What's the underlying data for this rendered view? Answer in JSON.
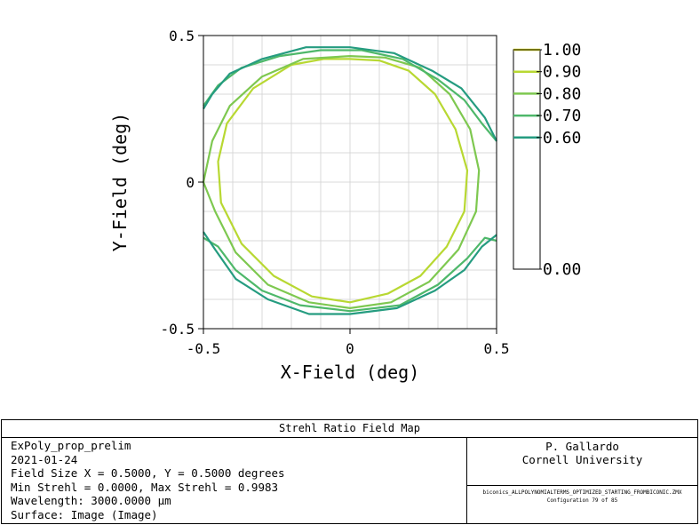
{
  "chart_data": {
    "type": "contour",
    "xlabel": "X-Field (deg)",
    "ylabel": "Y-Field (deg)",
    "xlim": [
      -0.5,
      0.5
    ],
    "ylim": [
      -0.5,
      0.5
    ],
    "x_ticks": [
      "-0.5",
      "0",
      "0.5"
    ],
    "y_ticks": [
      "0.5",
      "0",
      "-0.5"
    ],
    "grid": true,
    "legend": {
      "placement": "right",
      "entries": [
        {
          "label": "1.00",
          "color": "#e8e82a"
        },
        {
          "label": "0.90",
          "color": "#b8d832"
        },
        {
          "label": "0.80",
          "color": "#7ec850"
        },
        {
          "label": "0.70",
          "color": "#4eb86a"
        },
        {
          "label": "0.60",
          "color": "#259c80"
        },
        {
          "label": "0.00",
          "color": ""
        }
      ]
    },
    "contours": [
      {
        "level": 0.9,
        "color": "#b8d832",
        "points": [
          [
            0.0,
            0.42
          ],
          [
            0.1,
            0.415
          ],
          [
            0.2,
            0.38
          ],
          [
            0.29,
            0.3
          ],
          [
            0.36,
            0.18
          ],
          [
            0.4,
            0.04
          ],
          [
            0.39,
            -0.1
          ],
          [
            0.33,
            -0.22
          ],
          [
            0.24,
            -0.32
          ],
          [
            0.13,
            -0.38
          ],
          [
            0.0,
            -0.41
          ],
          [
            -0.13,
            -0.39
          ],
          [
            -0.26,
            -0.32
          ],
          [
            -0.37,
            -0.21
          ],
          [
            -0.44,
            -0.07
          ],
          [
            -0.45,
            0.07
          ],
          [
            -0.42,
            0.2
          ],
          [
            -0.33,
            0.32
          ],
          [
            -0.2,
            0.4
          ],
          [
            -0.09,
            0.42
          ],
          [
            0.0,
            0.42
          ]
        ]
      },
      {
        "level": 0.8,
        "color": "#7ec850",
        "points": [
          [
            0.0,
            0.43
          ],
          [
            0.12,
            0.425
          ],
          [
            0.24,
            0.39
          ],
          [
            0.34,
            0.3
          ],
          [
            0.41,
            0.18
          ],
          [
            0.44,
            0.04
          ],
          [
            0.43,
            -0.1
          ],
          [
            0.37,
            -0.23
          ],
          [
            0.27,
            -0.34
          ],
          [
            0.14,
            -0.41
          ],
          [
            0.0,
            -0.43
          ],
          [
            -0.14,
            -0.41
          ],
          [
            -0.28,
            -0.35
          ],
          [
            -0.39,
            -0.24
          ],
          [
            -0.46,
            -0.1
          ],
          [
            -0.5,
            0.0
          ],
          [
            -0.47,
            0.14
          ],
          [
            -0.41,
            0.26
          ],
          [
            -0.3,
            0.36
          ],
          [
            -0.16,
            0.42
          ],
          [
            0.0,
            0.43
          ]
        ]
      },
      {
        "level": 0.7,
        "color": "#4eb86a",
        "points": [
          [
            -0.5,
            0.26
          ],
          [
            -0.45,
            0.33
          ],
          [
            -0.37,
            0.39
          ],
          [
            -0.24,
            0.43
          ],
          [
            -0.1,
            0.45
          ],
          [
            0.04,
            0.45
          ],
          [
            0.18,
            0.42
          ],
          [
            0.3,
            0.35
          ],
          [
            0.39,
            0.28
          ],
          [
            0.45,
            0.2
          ],
          [
            0.5,
            0.14
          ]
        ]
      },
      {
        "level": 0.7,
        "color": "#4eb86a",
        "points": [
          [
            -0.5,
            -0.19
          ],
          [
            -0.45,
            -0.22
          ],
          [
            -0.39,
            -0.3
          ],
          [
            -0.3,
            -0.37
          ],
          [
            -0.17,
            -0.42
          ],
          [
            0.0,
            -0.44
          ],
          [
            0.17,
            -0.42
          ],
          [
            0.3,
            -0.35
          ],
          [
            0.4,
            -0.26
          ],
          [
            0.46,
            -0.19
          ],
          [
            0.5,
            -0.2
          ]
        ]
      },
      {
        "level": 0.6,
        "color": "#259c80",
        "points": [
          [
            -0.5,
            0.25
          ],
          [
            -0.47,
            0.3
          ],
          [
            -0.41,
            0.37
          ],
          [
            -0.3,
            0.42
          ],
          [
            -0.15,
            0.46
          ],
          [
            0.0,
            0.46
          ],
          [
            0.15,
            0.44
          ],
          [
            0.28,
            0.38
          ],
          [
            0.38,
            0.32
          ],
          [
            0.46,
            0.22
          ],
          [
            0.5,
            0.14
          ]
        ]
      },
      {
        "level": 0.6,
        "color": "#259c80",
        "points": [
          [
            -0.5,
            -0.17
          ],
          [
            -0.46,
            -0.23
          ],
          [
            -0.39,
            -0.33
          ],
          [
            -0.28,
            -0.4
          ],
          [
            -0.14,
            -0.45
          ],
          [
            0.0,
            -0.45
          ],
          [
            0.16,
            -0.43
          ],
          [
            0.29,
            -0.37
          ],
          [
            0.39,
            -0.3
          ],
          [
            0.45,
            -0.22
          ],
          [
            0.5,
            -0.18
          ]
        ]
      }
    ]
  },
  "info": {
    "title": "Strehl Ratio Field Map",
    "lines": [
      "ExPoly_prop_prelim",
      "2021-01-24",
      "Field Size X = 0.5000, Y = 0.5000 degrees",
      "Min Strehl = 0.0000, Max Strehl = 0.9983",
      "Wavelength: 3000.0000 µm",
      "Surface: Image (Image)"
    ],
    "author": "P. Gallardo",
    "affiliation": "Cornell University",
    "filename": "biconics_ALLPOLYNOMIALTERMS_OPTIMIZED_STARTING_FROMBICONIC.ZMX",
    "configuration": "Configuration 79 of 85"
  }
}
